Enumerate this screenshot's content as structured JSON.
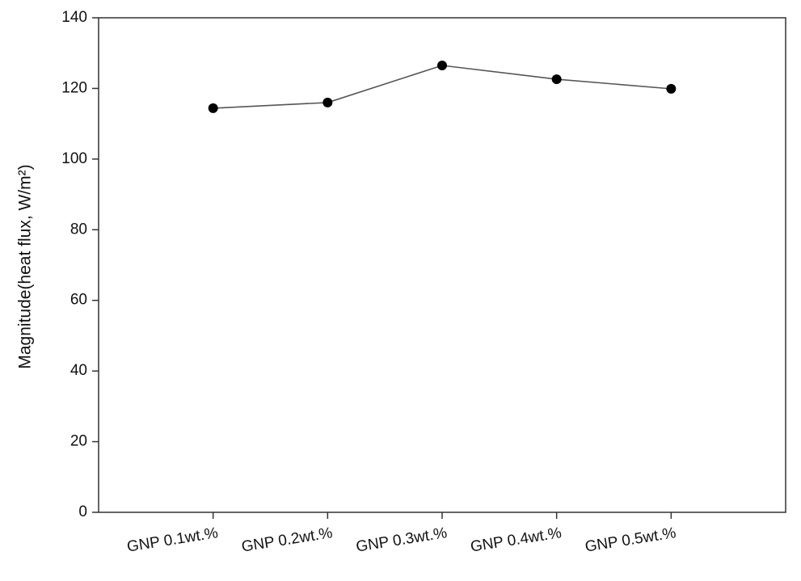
{
  "chart_data": {
    "type": "line",
    "y_label": "Magnitude(heat flux, W/m²)",
    "categories": [
      "GNP 0.1wt.%",
      "GNP 0.2wt.%",
      "GNP 0.3wt.%",
      "GNP 0.4wt.%",
      "GNP 0.5wt.%"
    ],
    "values": [
      114.4,
      116.0,
      126.5,
      122.6,
      119.9
    ],
    "color": "#555555",
    "marker_color": "#000000",
    "ylim": [
      0,
      140
    ],
    "yticks": [
      0,
      20,
      40,
      60,
      80,
      100,
      120,
      140
    ],
    "grid": false
  }
}
